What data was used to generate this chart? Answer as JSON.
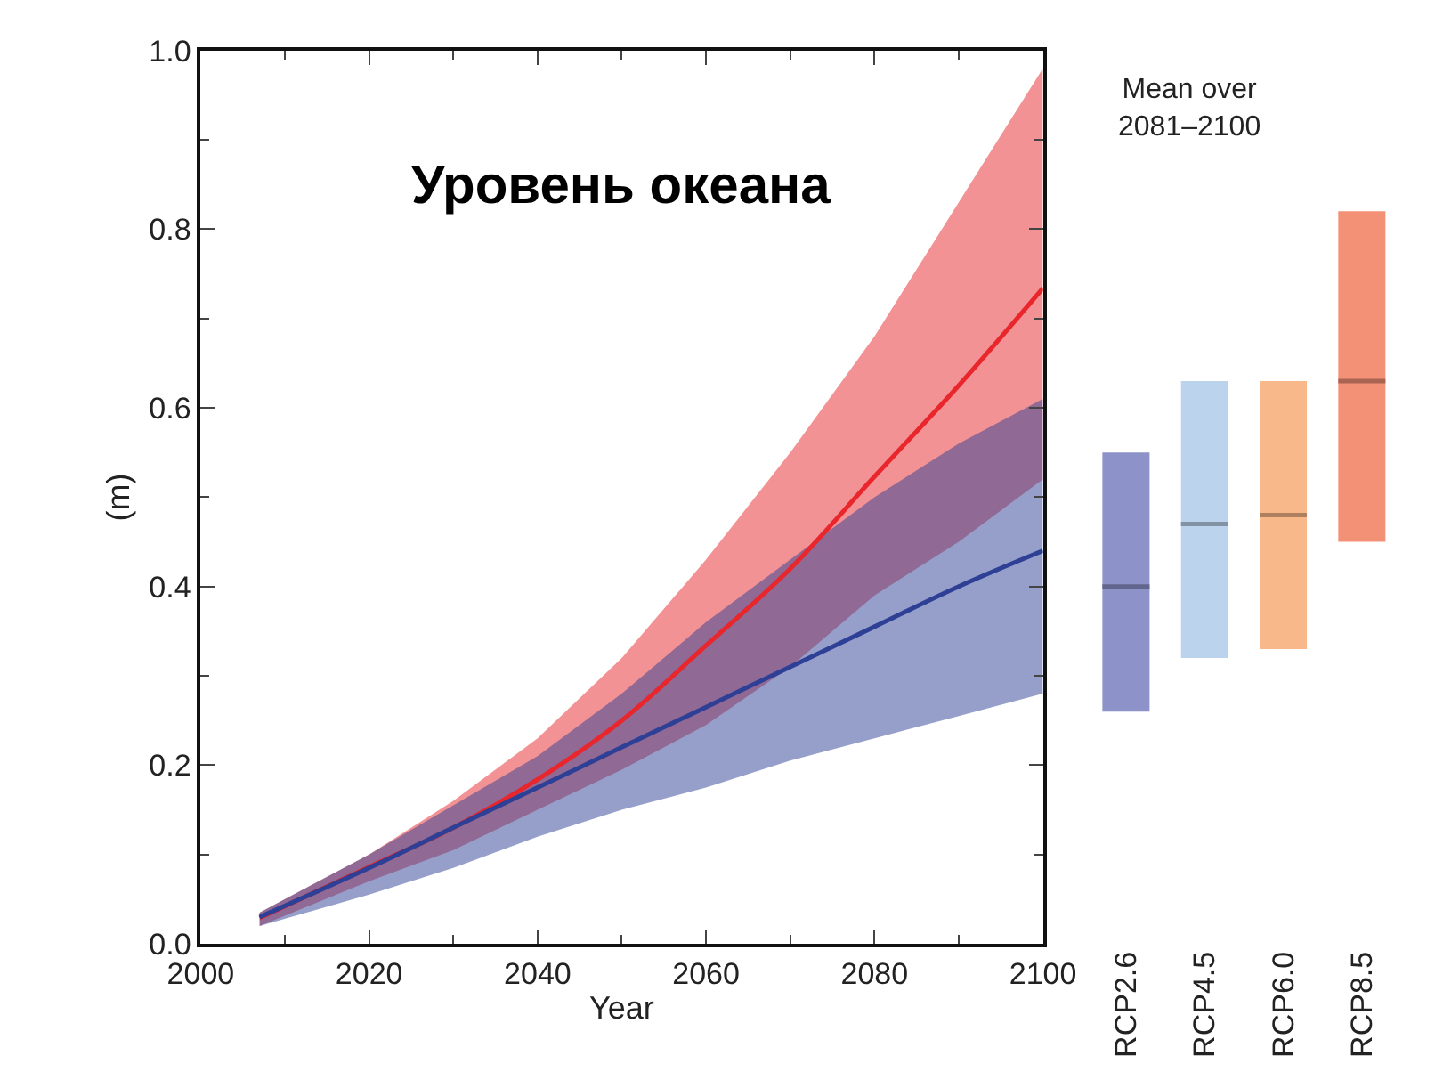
{
  "chart_data": [
    {
      "type": "line",
      "title": "Уровень океана",
      "xlabel": "Year",
      "ylabel": "(m)",
      "x": [
        2007,
        2020,
        2030,
        2040,
        2050,
        2060,
        2070,
        2080,
        2090,
        2100
      ],
      "series": [
        {
          "color": "#e8262b",
          "values": [
            0.029,
            0.086,
            0.13,
            0.184,
            0.25,
            0.334,
            0.42,
            0.523,
            0.625,
            0.734
          ],
          "lower": [
            0.02,
            0.07,
            0.105,
            0.15,
            0.195,
            0.245,
            0.31,
            0.39,
            0.45,
            0.52
          ],
          "upper": [
            0.035,
            0.1,
            0.16,
            0.23,
            0.32,
            0.43,
            0.55,
            0.68,
            0.83,
            0.98
          ]
        },
        {
          "color": "#2e3f96",
          "values": [
            0.03,
            0.085,
            0.13,
            0.175,
            0.22,
            0.265,
            0.31,
            0.355,
            0.4,
            0.44
          ],
          "lower": [
            0.02,
            0.055,
            0.085,
            0.12,
            0.15,
            0.175,
            0.205,
            0.23,
            0.255,
            0.28
          ],
          "upper": [
            0.035,
            0.1,
            0.155,
            0.21,
            0.28,
            0.36,
            0.43,
            0.5,
            0.56,
            0.61
          ]
        }
      ],
      "xlim": [
        2000,
        2100
      ],
      "xticks": [
        2000,
        2020,
        2040,
        2060,
        2080,
        2100
      ],
      "ylim": [
        0,
        1
      ],
      "yticks": [
        {
          "value": 0,
          "label": "0.0"
        },
        {
          "value": 0.2,
          "label": "0.2"
        },
        {
          "value": 0.4,
          "label": "0.4"
        },
        {
          "value": 0.6,
          "label": "0.6"
        },
        {
          "value": 0.8,
          "label": "0.8"
        },
        {
          "value": 1,
          "label": "1.0"
        }
      ],
      "marker": "none",
      "line_style": "solid"
    },
    {
      "type": "box",
      "title": "Mean over\n2081–2100",
      "categories": [
        "RCP2.6",
        "RCP4.5",
        "RCP6.0",
        "RCP8.5"
      ],
      "colors": [
        "#8d92c8",
        "#bcd3ee",
        "#f8b88a",
        "#f39176"
      ],
      "boxes": [
        {
          "low": 0.26,
          "q1": 0.26,
          "median": 0.4,
          "q3": 0.55,
          "high": 0.55
        },
        {
          "low": 0.32,
          "q1": 0.32,
          "median": 0.47,
          "q3": 0.63,
          "high": 0.63
        },
        {
          "low": 0.33,
          "q1": 0.33,
          "median": 0.48,
          "q3": 0.63,
          "high": 0.63
        },
        {
          "low": 0.45,
          "q1": 0.45,
          "median": 0.63,
          "q3": 0.82,
          "high": 0.82
        }
      ],
      "ylim": [
        0,
        1
      ],
      "tick_labels": "x"
    }
  ]
}
